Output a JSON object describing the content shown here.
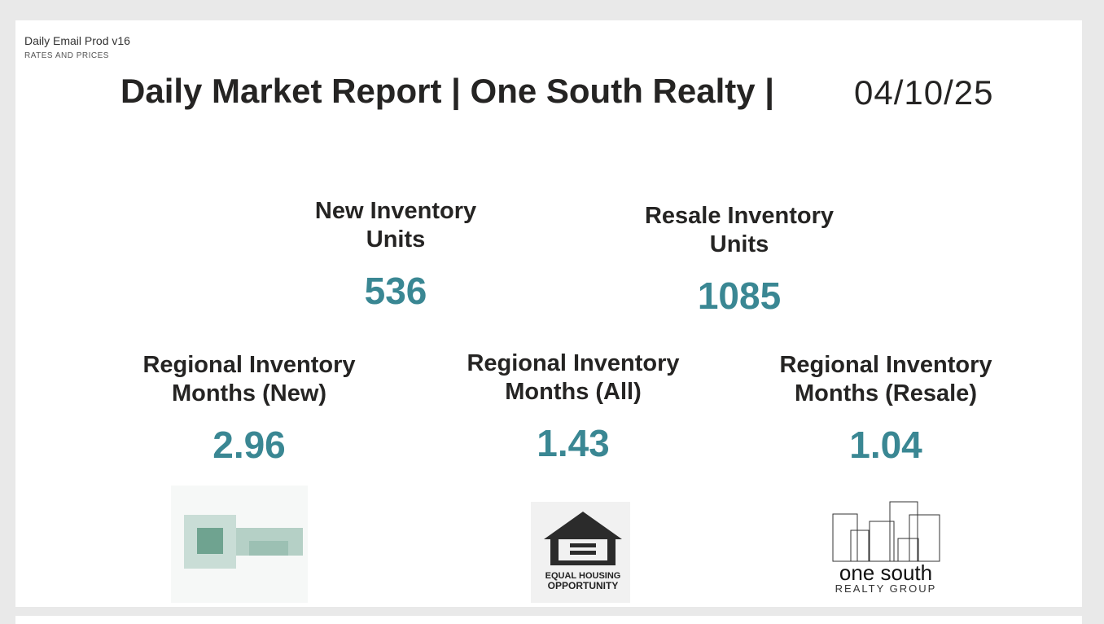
{
  "header": {
    "app_name": "Daily Email Prod v16",
    "section": "RATES AND PRICES"
  },
  "report": {
    "title": "Daily Market Report | One South Realty |",
    "date": "04/10/25"
  },
  "kpis": [
    {
      "label": [
        "New Inventory",
        "Units"
      ],
      "value": 536
    },
    {
      "label": [
        "Resale Inventory",
        "Units"
      ],
      "value": 1085
    },
    {
      "label": [
        "Regional Inventory",
        "Months (New)"
      ],
      "value": 2.96
    },
    {
      "label": [
        "Regional Inventory",
        "Months (All)"
      ],
      "value": 1.43
    },
    {
      "label": [
        "Regional Inventory",
        "Months (Resale)"
      ],
      "value": 1.04
    }
  ],
  "logos": {
    "equal_housing": [
      "EQUAL HOUSING",
      "OPPORTUNITY"
    ],
    "brand_name": "one south",
    "brand_sub": "REALTY GROUP"
  }
}
